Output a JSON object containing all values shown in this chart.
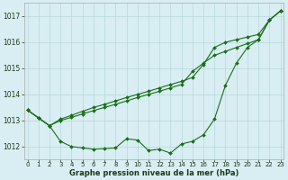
{
  "title": "Graphe pression niveau de la mer (hPa)",
  "background_color": "#d8eef2",
  "grid_color": "#b8d8dc",
  "line_color": "#1a6e1a",
  "x_labels": [
    "0",
    "1",
    "2",
    "3",
    "4",
    "5",
    "6",
    "7",
    "8",
    "9",
    "10",
    "11",
    "12",
    "13",
    "14",
    "15",
    "16",
    "17",
    "18",
    "19",
    "20",
    "21",
    "22",
    "23"
  ],
  "ylim": [
    1011.5,
    1017.5
  ],
  "yticks": [
    1012,
    1013,
    1014,
    1015,
    1016,
    1017
  ],
  "series1": [
    1013.4,
    1013.1,
    1012.8,
    1012.2,
    1012.0,
    1011.95,
    1011.9,
    1011.92,
    1011.95,
    1012.3,
    1012.25,
    1011.85,
    1011.9,
    1011.75,
    1012.1,
    1012.2,
    1012.45,
    1013.05,
    1014.35,
    1015.2,
    1015.8,
    1016.1,
    1016.85,
    1017.2
  ],
  "series2": [
    1013.4,
    1013.1,
    1012.8,
    1013.05,
    1013.2,
    1013.35,
    1013.5,
    1013.62,
    1013.75,
    1013.88,
    1014.0,
    1014.12,
    1014.25,
    1014.38,
    1014.5,
    1014.65,
    1015.15,
    1015.8,
    1016.0,
    1016.1,
    1016.2,
    1016.3,
    1016.85,
    1017.2
  ],
  "series3": [
    1013.4,
    1013.1,
    1012.8,
    1013.0,
    1013.12,
    1013.25,
    1013.38,
    1013.5,
    1013.62,
    1013.75,
    1013.88,
    1014.0,
    1014.12,
    1014.25,
    1014.38,
    1014.88,
    1015.2,
    1015.5,
    1015.65,
    1015.8,
    1015.95,
    1016.1,
    1016.85,
    1017.2
  ]
}
